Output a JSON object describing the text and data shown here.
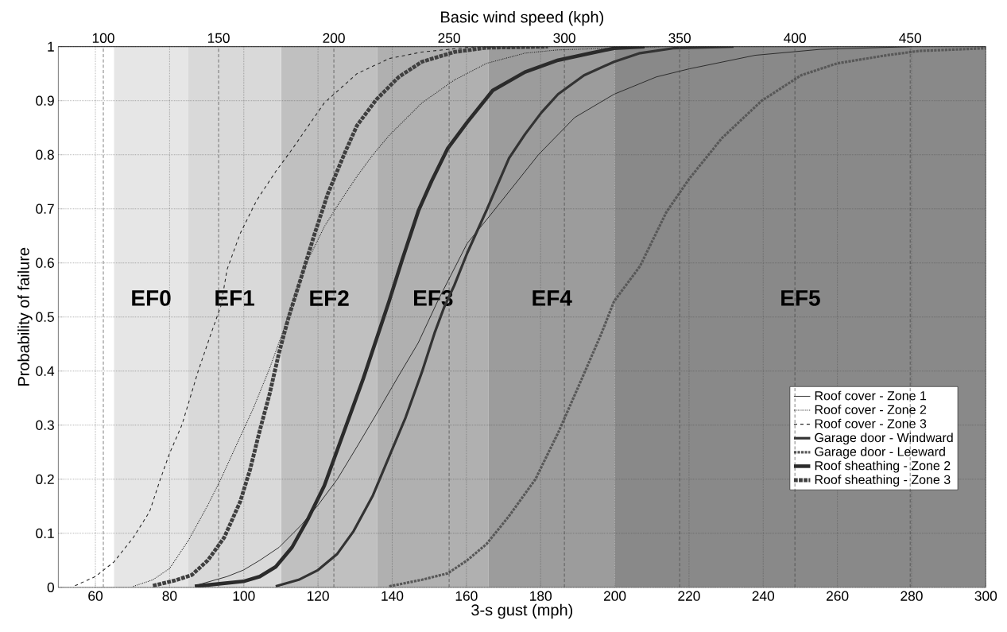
{
  "chart_data": {
    "type": "line",
    "xlabel": "3-s gust (mph)",
    "ylabel": "Probability of failure",
    "x2label": "Basic wind speed (kph)",
    "xlim": [
      50,
      300
    ],
    "xticks": [
      60,
      80,
      100,
      120,
      140,
      160,
      180,
      200,
      220,
      240,
      260,
      280,
      300
    ],
    "ylim": [
      0,
      1
    ],
    "yticks": [
      0,
      0.1,
      0.2,
      0.3,
      0.4,
      0.5,
      0.6,
      0.7,
      0.8,
      0.9,
      1
    ],
    "x2lim": [
      80.47,
      482.8
    ],
    "x2ticks": [
      100,
      150,
      200,
      250,
      300,
      350,
      400,
      450
    ],
    "grid": true,
    "legend": "bottom right",
    "marker": "none",
    "bands": [
      {
        "axis": "x",
        "from": 65,
        "to": 85,
        "label": "EF0",
        "color": "#e6e6e6"
      },
      {
        "axis": "x",
        "from": 85,
        "to": 110,
        "label": "EF1",
        "color": "#d9d9d9"
      },
      {
        "axis": "x",
        "from": 110,
        "to": 136,
        "label": "EF2",
        "color": "#c0c0c0"
      },
      {
        "axis": "x",
        "from": 136,
        "to": 166,
        "label": "EF3",
        "color": "#b0b0b0"
      },
      {
        "axis": "x",
        "from": 166,
        "to": 200,
        "label": "EF4",
        "color": "#9c9c9c"
      },
      {
        "axis": "x",
        "from": 200,
        "to": 300,
        "label": "EF5",
        "color": "#898989"
      }
    ],
    "series": [
      {
        "name": "Roof cover - Zone 1",
        "color": "#262626",
        "line_style": "solid",
        "x": [
          86.8,
          95.5,
          99.9,
          104.3,
          109.5,
          115.6,
          120,
          125.2,
          130.5,
          135.7,
          141.8,
          147,
          152.3,
          160.2,
          167.1,
          179.4,
          189.2,
          199.8,
          211.2,
          220.1,
          237.8,
          255.4,
          280
        ],
        "values": [
          0.003,
          0.02,
          0.032,
          0.05,
          0.074,
          0.116,
          0.152,
          0.2,
          0.26,
          0.32,
          0.392,
          0.452,
          0.53,
          0.636,
          0.694,
          0.8,
          0.869,
          0.912,
          0.944,
          0.959,
          0.984,
          0.995,
          1
        ]
      },
      {
        "name": "Roof cover - Zone 2",
        "color": "#262626",
        "line_style": "dotted",
        "x": [
          70.2,
          75.5,
          80,
          85,
          90.3,
          93.8,
          98.2,
          102.5,
          106.9,
          110.4,
          116.5,
          121.7,
          126.1,
          130.5,
          134.8,
          139.2,
          148,
          156.7,
          165.4,
          175.8,
          184.7,
          212
        ],
        "values": [
          0.002,
          0.014,
          0.035,
          0.086,
          0.152,
          0.2,
          0.266,
          0.33,
          0.404,
          0.47,
          0.594,
          0.667,
          0.715,
          0.76,
          0.8,
          0.836,
          0.896,
          0.938,
          0.969,
          0.988,
          0.994,
          1
        ]
      },
      {
        "name": "Roof cover - Zone 3",
        "color": "#262626",
        "line_style": "dashed",
        "x": [
          54.5,
          60,
          65,
          70.2,
          74.6,
          77.5,
          80,
          83.3,
          87.7,
          91.2,
          93.8,
          95.5,
          99,
          103.4,
          108.6,
          113,
          121.7,
          130.5,
          139.2,
          148,
          161,
          176
        ],
        "values": [
          0.003,
          0.02,
          0.047,
          0.092,
          0.14,
          0.2,
          0.248,
          0.3,
          0.4,
          0.47,
          0.52,
          0.588,
          0.654,
          0.715,
          0.769,
          0.81,
          0.896,
          0.95,
          0.978,
          0.99,
          0.999,
          1
        ]
      },
      {
        "name": "Garage door - Windward",
        "color": "#333333",
        "line_style": "solid",
        "x": [
          108.6,
          114.8,
          120,
          125.2,
          129.6,
          134.8,
          139.2,
          143.6,
          148,
          151.4,
          154,
          156.7,
          160.2,
          165.4,
          171.5,
          175.8,
          180.2,
          184.7,
          191.7,
          199.8,
          206.8,
          215.7,
          232
        ],
        "values": [
          0.002,
          0.014,
          0.032,
          0.062,
          0.104,
          0.17,
          0.242,
          0.314,
          0.398,
          0.47,
          0.518,
          0.558,
          0.618,
          0.697,
          0.794,
          0.838,
          0.878,
          0.912,
          0.947,
          0.972,
          0.988,
          0.997,
          1
        ]
      },
      {
        "name": "Garage door - Leeward",
        "color": "#585858",
        "line_style": "dotted",
        "x": [
          139.2,
          148,
          155,
          160.2,
          165.4,
          171.4,
          178.6,
          184.8,
          191,
          196.3,
          199.8,
          206.8,
          213.9,
          220.1,
          228.9,
          239.6,
          250.2,
          259.9,
          273.2,
          282,
          300
        ],
        "values": [
          0.002,
          0.014,
          0.026,
          0.05,
          0.08,
          0.131,
          0.2,
          0.287,
          0.384,
          0.468,
          0.529,
          0.594,
          0.694,
          0.756,
          0.831,
          0.9,
          0.947,
          0.969,
          0.984,
          0.992,
          0.997
        ]
      },
      {
        "name": "Roof sheathing - Zone 2",
        "color": "#2b2b2b",
        "line_style": "solid",
        "x": [
          86.8,
          99.9,
          104.3,
          108.6,
          113,
          117.4,
          121.7,
          125.2,
          128.7,
          132.2,
          135.7,
          139.2,
          142.7,
          147.1,
          150.6,
          154.9,
          160.2,
          167.1,
          175.8,
          184.7,
          193.6,
          199.8,
          208
        ],
        "values": [
          0.002,
          0.011,
          0.02,
          0.038,
          0.074,
          0.128,
          0.188,
          0.254,
          0.32,
          0.386,
          0.458,
          0.53,
          0.606,
          0.697,
          0.751,
          0.811,
          0.86,
          0.919,
          0.953,
          0.975,
          0.988,
          0.997,
          1
        ]
      },
      {
        "name": "Roof sheathing - Zone 3",
        "color": "#404040",
        "line_style": "dotted",
        "x": [
          75.5,
          81.6,
          86,
          90.3,
          94.7,
          99,
          101.7,
          104.3,
          106.9,
          109.5,
          112.1,
          115.6,
          119.1,
          122.6,
          127,
          130.5,
          135.7,
          141.8,
          148,
          156.7,
          165.4,
          182
        ],
        "values": [
          0.003,
          0.013,
          0.023,
          0.05,
          0.092,
          0.158,
          0.218,
          0.29,
          0.356,
          0.434,
          0.5,
          0.576,
          0.654,
          0.727,
          0.8,
          0.854,
          0.902,
          0.944,
          0.972,
          0.99,
          0.998,
          1
        ]
      }
    ]
  }
}
